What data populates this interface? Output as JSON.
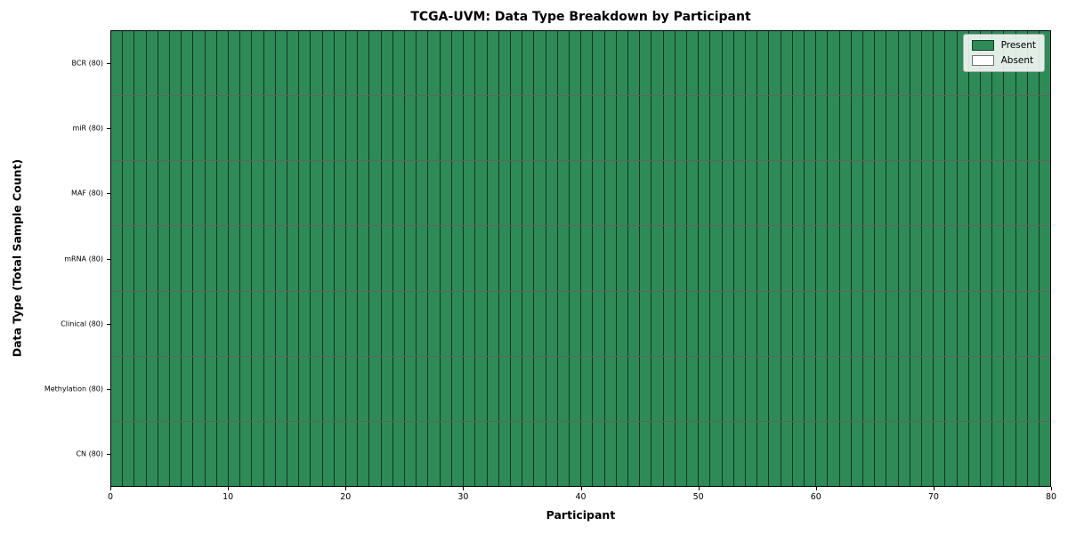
{
  "chart_data": {
    "type": "heatmap",
    "title": "TCGA-UVM: Data Type Breakdown by Participant",
    "xlabel": "Participant",
    "ylabel": "Data Type (Total Sample Count)",
    "xlim": [
      0,
      80
    ],
    "x_ticks": [
      0,
      10,
      20,
      30,
      40,
      50,
      60,
      70,
      80
    ],
    "n_participants": 80,
    "grid": "cell-borders-on",
    "legend_position": "upper right",
    "rows": [
      {
        "label": "BCR (80)",
        "data_type": "BCR",
        "total_samples": 80,
        "present_count": 80,
        "absent_count": 0
      },
      {
        "label": "miR (80)",
        "data_type": "miR",
        "total_samples": 80,
        "present_count": 80,
        "absent_count": 0
      },
      {
        "label": "MAF (80)",
        "data_type": "MAF",
        "total_samples": 80,
        "present_count": 80,
        "absent_count": 0
      },
      {
        "label": "mRNA (80)",
        "data_type": "mRNA",
        "total_samples": 80,
        "present_count": 80,
        "absent_count": 0
      },
      {
        "label": "Clinical (80)",
        "data_type": "Clinical",
        "total_samples": 80,
        "present_count": 80,
        "absent_count": 0
      },
      {
        "label": "Methylation (80)",
        "data_type": "Methylation",
        "total_samples": 80,
        "present_count": 80,
        "absent_count": 0
      },
      {
        "label": "CN (80)",
        "data_type": "CN",
        "total_samples": 80,
        "present_count": 80,
        "absent_count": 0
      }
    ],
    "legend": [
      {
        "label": "Present",
        "color": "#2e8b57"
      },
      {
        "label": "Absent",
        "color": "#ffffff"
      }
    ],
    "colors": {
      "present": "#2e8b57",
      "absent": "#ffffff",
      "cell_border": "rgba(0,0,0,0.62)",
      "axis_spine": "#000000"
    }
  }
}
